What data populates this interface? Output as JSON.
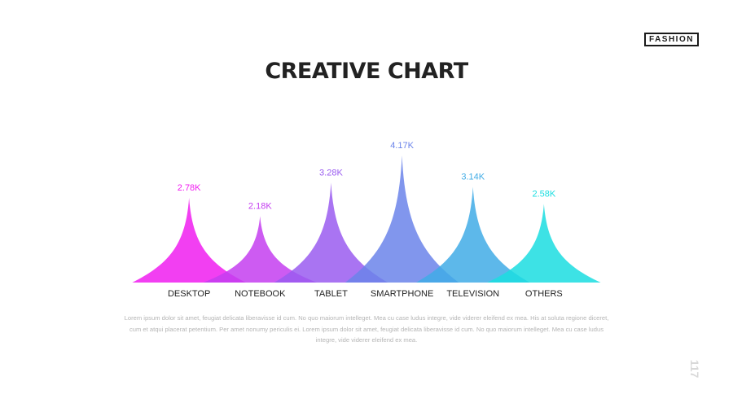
{
  "brand": {
    "label": "FASHION"
  },
  "page": {
    "title": "CREATIVE CHART",
    "number": "117"
  },
  "description": "Lorem ipsum dolor sit amet, feugiat delicata liberavisse id cum. No quo maiorum intelleget. Mea cu case ludus integre, vide viderer eleifend ex mea. His at soluta regione diceret, cum et atqui placerat petentium. Per amet nonumy periculis ei. Lorem ipsum dolor sit amet, feugiat delicata liberavisse id cum. No quo maiorum intelleget. Mea cu case ludus integre, vide viderer eleifend ex mea.",
  "chart_data": {
    "type": "area",
    "categories": [
      "DESKTOP",
      "NOTEBOOK",
      "TABLET",
      "SMARTPHONE",
      "TELEVISION",
      "OTHERS"
    ],
    "values": [
      2.78,
      2.18,
      3.28,
      4.17,
      3.14,
      2.58
    ],
    "value_labels": [
      "2.78K",
      "2.18K",
      "3.28K",
      "4.17K",
      "3.14K",
      "2.58K"
    ],
    "colors": [
      "#f01df0",
      "#c43ef0",
      "#9a5cf0",
      "#6b84ea",
      "#41ace6",
      "#1bdde0"
    ],
    "grid": false,
    "legend": "none"
  }
}
